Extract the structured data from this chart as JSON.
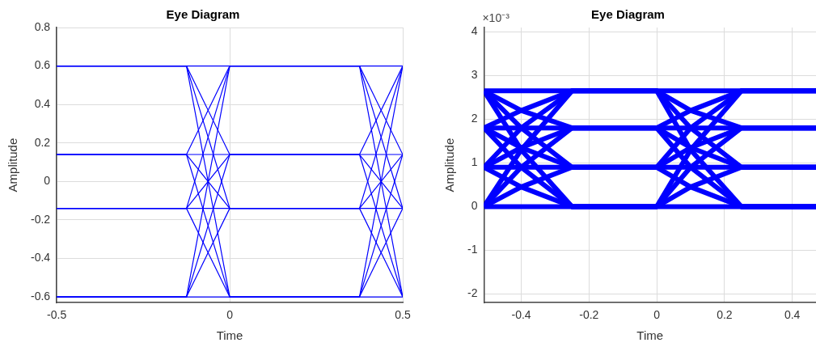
{
  "chart_data": [
    {
      "type": "line",
      "title": "Eye Diagram",
      "xlabel": "Time",
      "ylabel": "Amplitude",
      "xlim": [
        -0.5,
        0.5
      ],
      "xticks": [
        -0.5,
        0,
        0.5
      ],
      "ylim": [
        -0.63,
        0.8
      ],
      "yticks": [
        -0.6,
        -0.4,
        -0.2,
        0,
        0.2,
        0.4,
        0.6,
        0.8
      ],
      "grid": true,
      "legend": false,
      "x": [
        -0.5,
        -0.125,
        0,
        0.375,
        0.5
      ],
      "series": [
        {
          "color": "#0000ff",
          "values": [
            0.6,
            0.6,
            0.6,
            0.6,
            0.6
          ]
        },
        {
          "color": "#0000ff",
          "values": [
            0.6,
            0.6,
            0.14,
            0.14,
            0.6
          ]
        },
        {
          "color": "#0000ff",
          "values": [
            0.6,
            0.6,
            -0.14,
            -0.14,
            0.6
          ]
        },
        {
          "color": "#0000ff",
          "values": [
            0.6,
            0.6,
            -0.6,
            -0.6,
            0.6
          ]
        },
        {
          "color": "#0000ff",
          "values": [
            0.14,
            0.14,
            0.6,
            0.6,
            0.14
          ]
        },
        {
          "color": "#0000ff",
          "values": [
            0.14,
            0.14,
            0.14,
            0.14,
            0.14
          ]
        },
        {
          "color": "#0000ff",
          "values": [
            0.14,
            0.14,
            -0.14,
            -0.14,
            0.14
          ]
        },
        {
          "color": "#0000ff",
          "values": [
            0.14,
            0.14,
            -0.6,
            -0.6,
            0.14
          ]
        },
        {
          "color": "#0000ff",
          "values": [
            -0.14,
            -0.14,
            0.6,
            0.6,
            -0.14
          ]
        },
        {
          "color": "#0000ff",
          "values": [
            -0.14,
            -0.14,
            0.14,
            0.14,
            -0.14
          ]
        },
        {
          "color": "#0000ff",
          "values": [
            -0.14,
            -0.14,
            -0.14,
            -0.14,
            -0.14
          ]
        },
        {
          "color": "#0000ff",
          "values": [
            -0.14,
            -0.14,
            -0.6,
            -0.6,
            -0.14
          ]
        },
        {
          "color": "#0000ff",
          "values": [
            -0.6,
            -0.6,
            0.6,
            0.6,
            -0.6
          ]
        },
        {
          "color": "#0000ff",
          "values": [
            -0.6,
            -0.6,
            0.14,
            0.14,
            -0.6
          ]
        },
        {
          "color": "#0000ff",
          "values": [
            -0.6,
            -0.6,
            -0.14,
            -0.14,
            -0.6
          ]
        },
        {
          "color": "#0000ff",
          "values": [
            -0.6,
            -0.6,
            -0.6,
            -0.6,
            -0.6
          ]
        }
      ]
    },
    {
      "type": "line",
      "title": "Eye Diagram",
      "xlabel": "Time",
      "ylabel": "Amplitude",
      "annotations": [
        "×10⁻³"
      ],
      "xlim": [
        -0.51,
        0.47
      ],
      "xticks": [
        -0.4,
        -0.2,
        0,
        0.2,
        0.4
      ],
      "ylim": [
        -2.2,
        4.1
      ],
      "yticks": [
        -2,
        -1,
        0,
        1,
        2,
        3,
        4
      ],
      "grid": true,
      "legend": false,
      "x": [
        -0.51,
        -0.4,
        -0.25,
        0,
        0.1,
        0.25,
        0.47
      ],
      "series": [
        {
          "color": "#0000ff",
          "values": [
            0,
            0,
            0,
            0,
            0,
            0,
            0
          ]
        },
        {
          "color": "#0000ff",
          "values": [
            0,
            0.45,
            0.9,
            0.9,
            0.45,
            0,
            0
          ]
        },
        {
          "color": "#0000ff",
          "values": [
            0,
            0.9,
            1.8,
            1.8,
            0.9,
            0,
            0
          ]
        },
        {
          "color": "#0000ff",
          "values": [
            0,
            1.3,
            2.65,
            2.65,
            1.3,
            0,
            0
          ]
        },
        {
          "color": "#0000ff",
          "values": [
            0.9,
            0.45,
            0,
            0,
            0.45,
            0.9,
            0.9
          ]
        },
        {
          "color": "#0000ff",
          "values": [
            0.9,
            0.9,
            0.9,
            0.9,
            0.9,
            0.9,
            0.9
          ]
        },
        {
          "color": "#0000ff",
          "values": [
            0.9,
            1.35,
            1.8,
            1.8,
            1.35,
            0.9,
            0.9
          ]
        },
        {
          "color": "#0000ff",
          "values": [
            0.9,
            1.8,
            2.65,
            2.65,
            1.8,
            0.9,
            0.9
          ]
        },
        {
          "color": "#0000ff",
          "values": [
            1.8,
            0.9,
            0,
            0,
            0.9,
            1.8,
            1.8
          ]
        },
        {
          "color": "#0000ff",
          "values": [
            1.8,
            1.35,
            0.9,
            0.9,
            1.35,
            1.8,
            1.8
          ]
        },
        {
          "color": "#0000ff",
          "values": [
            1.8,
            1.8,
            1.8,
            1.8,
            1.8,
            1.8,
            1.8
          ]
        },
        {
          "color": "#0000ff",
          "values": [
            1.8,
            2.2,
            2.65,
            2.65,
            2.2,
            1.8,
            1.8
          ]
        },
        {
          "color": "#0000ff",
          "values": [
            2.65,
            1.3,
            0,
            0,
            1.3,
            2.65,
            2.65
          ]
        },
        {
          "color": "#0000ff",
          "values": [
            2.65,
            1.8,
            0.9,
            0.9,
            1.8,
            2.65,
            2.65
          ]
        },
        {
          "color": "#0000ff",
          "values": [
            2.65,
            2.2,
            1.8,
            1.8,
            2.2,
            2.65,
            2.65
          ]
        },
        {
          "color": "#0000ff",
          "values": [
            2.65,
            2.65,
            2.65,
            2.65,
            2.65,
            2.65,
            2.65
          ]
        }
      ]
    }
  ]
}
